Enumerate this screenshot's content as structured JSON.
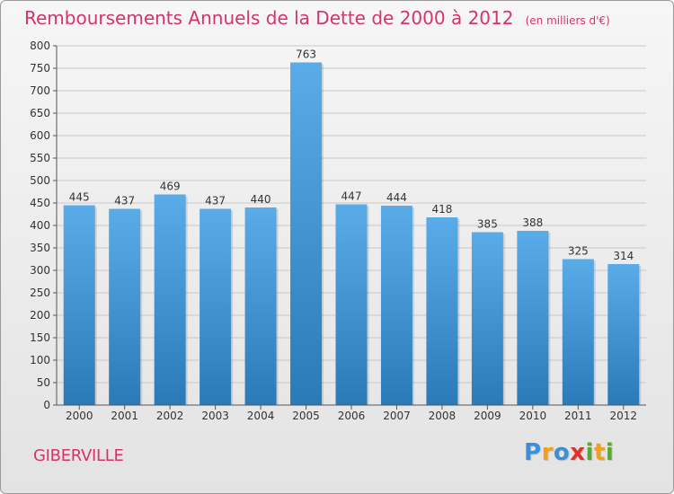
{
  "title": "Remboursements Annuels de la Dette de 2000 à 2012",
  "subtitle": "(en milliers d'€)",
  "place": "GIBERVILLE",
  "logo": {
    "text": "Proxiti",
    "letters": [
      {
        "ch": "P",
        "color": "#3a8fd6"
      },
      {
        "ch": "r",
        "color": "#f0a020"
      },
      {
        "ch": "o",
        "color": "#3a8fd6"
      },
      {
        "ch": "x",
        "color": "#e0302a"
      },
      {
        "ch": "i",
        "color": "#5aa832"
      },
      {
        "ch": "t",
        "color": "#f0a020"
      },
      {
        "ch": "i",
        "color": "#5aa832"
      }
    ]
  },
  "colors": {
    "accent": "#d6336c",
    "bar_top": "#5aace8",
    "bar_bottom": "#2a7ab8"
  },
  "chart_data": {
    "type": "bar",
    "categories": [
      "2000",
      "2001",
      "2002",
      "2003",
      "2004",
      "2005",
      "2006",
      "2007",
      "2008",
      "2009",
      "2010",
      "2011",
      "2012"
    ],
    "values": [
      445,
      437,
      469,
      437,
      440,
      763,
      447,
      444,
      418,
      385,
      388,
      325,
      314
    ],
    "ylim": [
      0,
      800
    ],
    "yticks": [
      0,
      50,
      100,
      150,
      200,
      250,
      300,
      350,
      400,
      450,
      500,
      550,
      600,
      650,
      700,
      750,
      800
    ],
    "grid": true,
    "data_labels": true
  }
}
